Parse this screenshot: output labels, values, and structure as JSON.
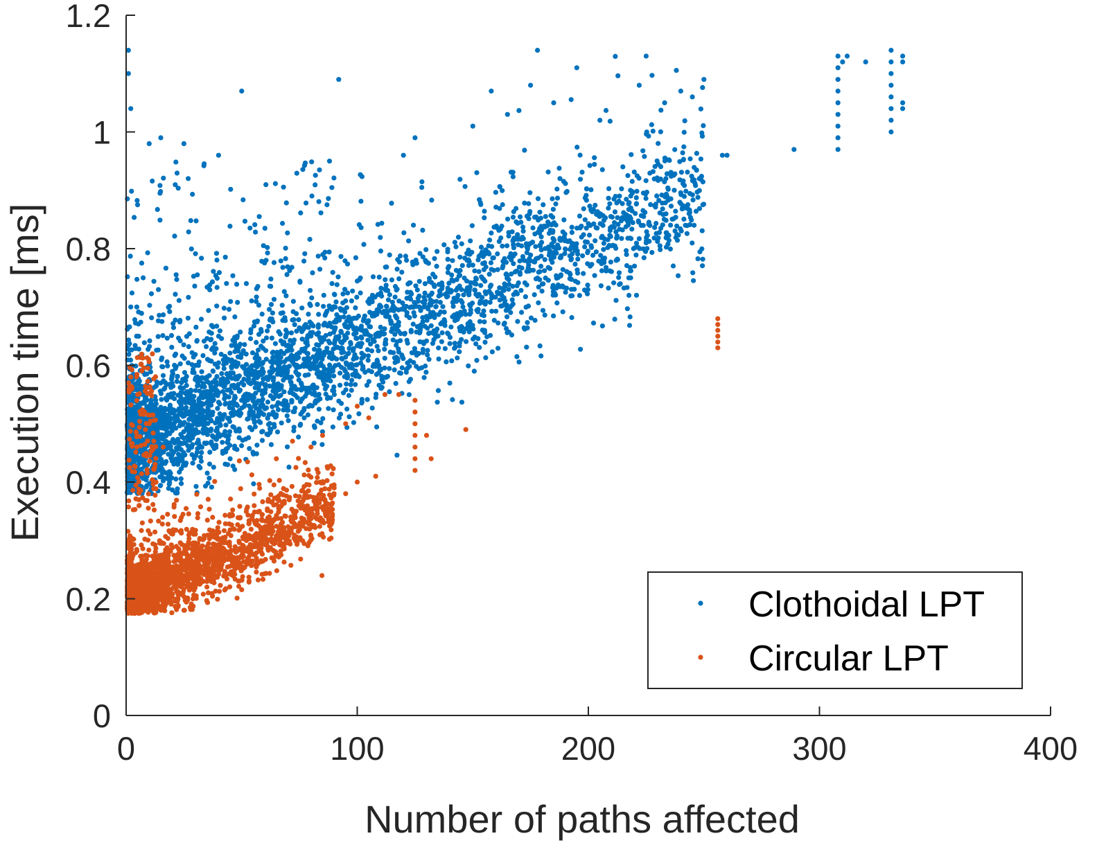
{
  "chart_data": {
    "type": "scatter",
    "title": "",
    "xlabel": "Number of paths affected",
    "ylabel": "Execution time [ms]",
    "xlim": [
      0,
      400
    ],
    "ylim": [
      0,
      1.2
    ],
    "xticks": [
      "0",
      "100",
      "200",
      "300",
      "400"
    ],
    "yticks": [
      "0",
      "0.2",
      "0.4",
      "0.6",
      "0.8",
      "1",
      "1.2"
    ],
    "grid": false,
    "legend_position": "bottom-right",
    "series": [
      {
        "name": "Clothoidal LPT",
        "color": "#0072BD",
        "trend": {
          "x_range": [
            0,
            250
          ],
          "y_start": 0.46,
          "y_end": 0.9
        },
        "points": [
          [
            1,
            1.14
          ],
          [
            1,
            1.1
          ],
          [
            2,
            1.04
          ],
          [
            15,
            0.99
          ],
          [
            10,
            0.98
          ],
          [
            25,
            0.98
          ],
          [
            40,
            0.96
          ],
          [
            50,
            1.07
          ],
          [
            92,
            1.09
          ],
          [
            88,
            0.95
          ],
          [
            120,
            0.96
          ],
          [
            125,
            0.99
          ],
          [
            150,
            1.01
          ],
          [
            158,
            1.07
          ],
          [
            165,
            1.03
          ],
          [
            175,
            1.08
          ],
          [
            178,
            1.14
          ],
          [
            185,
            1.05
          ],
          [
            195,
            1.11
          ],
          [
            205,
            1.02
          ],
          [
            222,
            1.08
          ],
          [
            225,
            1.13
          ],
          [
            233,
            1.05
          ],
          [
            240,
            1.07
          ],
          [
            245,
            1.06
          ],
          [
            250,
            1.09
          ],
          [
            258,
            0.96
          ],
          [
            289,
            0.97
          ],
          [
            260,
            0.96
          ],
          [
            248,
            0.92
          ],
          [
            242,
            0.84
          ],
          [
            225,
            0.81
          ],
          [
            308,
            1.13
          ],
          [
            308,
            1.11
          ],
          [
            308,
            1.09
          ],
          [
            308,
            1.07
          ],
          [
            308,
            1.05
          ],
          [
            308,
            1.03
          ],
          [
            308,
            1.01
          ],
          [
            308,
            0.99
          ],
          [
            308,
            0.97
          ],
          [
            310,
            1.12
          ],
          [
            312,
            1.13
          ],
          [
            320,
            1.12
          ],
          [
            331,
            1.14
          ],
          [
            331,
            1.12
          ],
          [
            331,
            1.1
          ],
          [
            331,
            1.08
          ],
          [
            331,
            1.06
          ],
          [
            331,
            1.04
          ],
          [
            331,
            1.02
          ],
          [
            331,
            1.0
          ],
          [
            336,
            1.13
          ],
          [
            336,
            1.12
          ],
          [
            336,
            1.05
          ],
          [
            336,
            1.04
          ]
        ]
      },
      {
        "name": "Circular LPT",
        "color": "#D95319",
        "trend": {
          "x_range": [
            0,
            90
          ],
          "y_start": 0.2,
          "y_end": 0.36
        },
        "points": [
          [
            256,
            0.68
          ],
          [
            256,
            0.67
          ],
          [
            256,
            0.66
          ],
          [
            256,
            0.65
          ],
          [
            256,
            0.64
          ],
          [
            256,
            0.63
          ],
          [
            125,
            0.54
          ],
          [
            125,
            0.52
          ],
          [
            125,
            0.5
          ],
          [
            125,
            0.48
          ],
          [
            125,
            0.46
          ],
          [
            125,
            0.44
          ],
          [
            125,
            0.42
          ],
          [
            130,
            0.48
          ],
          [
            132,
            0.44
          ],
          [
            147,
            0.49
          ],
          [
            112,
            0.55
          ],
          [
            118,
            0.55
          ],
          [
            100,
            0.53
          ],
          [
            105,
            0.51
          ],
          [
            95,
            0.5
          ],
          [
            85,
            0.48
          ],
          [
            80,
            0.46
          ],
          [
            72,
            0.47
          ],
          [
            65,
            0.44
          ],
          [
            108,
            0.41
          ],
          [
            100,
            0.4
          ],
          [
            95,
            0.38
          ],
          [
            90,
            0.39
          ],
          [
            86,
            0.37
          ],
          [
            2,
            0.58
          ],
          [
            5,
            0.55
          ],
          [
            8,
            0.52
          ],
          [
            10,
            0.5
          ],
          [
            12,
            0.47
          ],
          [
            16,
            0.46
          ]
        ]
      }
    ]
  }
}
